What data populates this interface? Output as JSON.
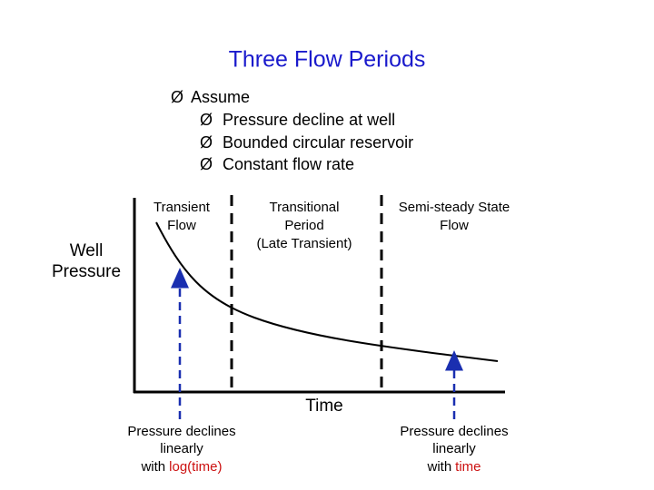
{
  "title": "Three Flow Periods",
  "bullet": "Ø",
  "assume": {
    "text": "Assume",
    "items": [
      "Pressure decline at well",
      "Bounded circular reservoir",
      "Constant flow rate"
    ]
  },
  "periods": [
    {
      "lines": [
        "Transient",
        "Flow"
      ]
    },
    {
      "lines": [
        "Transitional",
        "Period",
        "(Late Transient)"
      ]
    },
    {
      "lines": [
        "Semi-steady State",
        "Flow"
      ]
    }
  ],
  "y_label": [
    "Well",
    "Pressure"
  ],
  "x_label": "Time",
  "notes": [
    {
      "lines": [
        "Pressure declines",
        "linearly"
      ],
      "last": "with",
      "highlight": "log(time)"
    },
    {
      "lines": [
        "Pressure declines",
        "linearly"
      ],
      "last": "with",
      "highlight": "time"
    }
  ]
}
